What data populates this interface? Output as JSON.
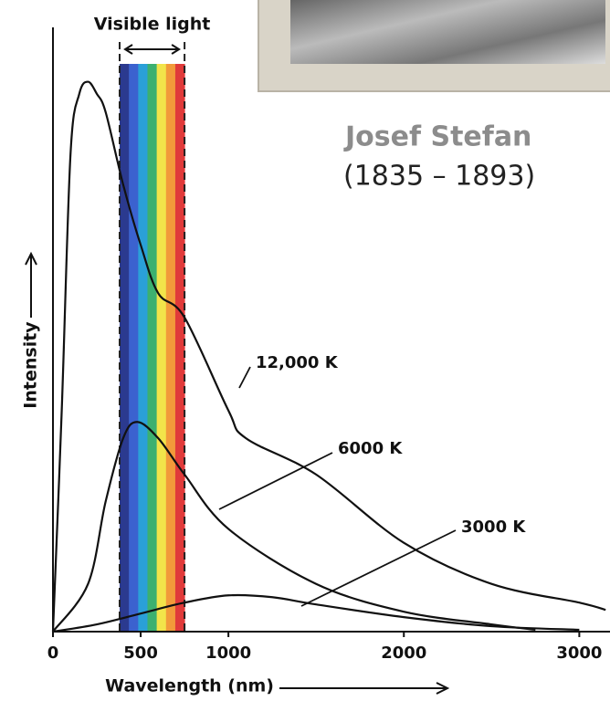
{
  "chart_data": {
    "type": "line",
    "xlabel": "Wavelength (nm)",
    "ylabel": "Intensity",
    "xlim": [
      0,
      3175
    ],
    "ylim": [
      0,
      100
    ],
    "xticks": [
      0,
      500,
      1000,
      2000,
      3000
    ],
    "visible_label": "Visible light",
    "visible_band": [
      380,
      750
    ],
    "visible_colors": [
      "#2b3a8f",
      "#3b62cf",
      "#2aa0d8",
      "#3cb070",
      "#f2e44a",
      "#f29a3a",
      "#e03a3a"
    ],
    "annotations": [
      "Josef Stefan",
      "(1835 – 1893)"
    ],
    "series": [
      {
        "name": "12,000 K",
        "color": "#111111",
        "x": [
          0,
          50,
          100,
          150,
          200,
          250,
          300,
          400,
          500,
          600,
          750,
          1000,
          1100,
          1500,
          2000,
          2500,
          3000,
          3150
        ],
        "values": [
          0,
          36.6,
          79,
          89,
          91,
          89,
          86,
          74,
          64,
          56,
          52,
          36.6,
          32,
          26,
          14.7,
          7.9,
          4.8,
          3.6
        ]
      },
      {
        "name": "6000 K",
        "color": "#111111",
        "x": [
          0,
          200,
          300,
          400,
          480,
          600,
          750,
          1000,
          1500,
          2000,
          2500,
          2750
        ],
        "values": [
          0,
          7.9,
          21.5,
          32,
          34.7,
          32,
          26,
          17,
          7.9,
          3.3,
          1.2,
          0.3
        ]
      },
      {
        "name": "3000 K",
        "color": "#111111",
        "x": [
          0,
          250,
          500,
          750,
          1000,
          1250,
          1500,
          2000,
          2500,
          3000
        ],
        "values": [
          0,
          1.2,
          3,
          4.8,
          6,
          5.7,
          4.5,
          2.4,
          0.9,
          0.3
        ]
      }
    ]
  }
}
